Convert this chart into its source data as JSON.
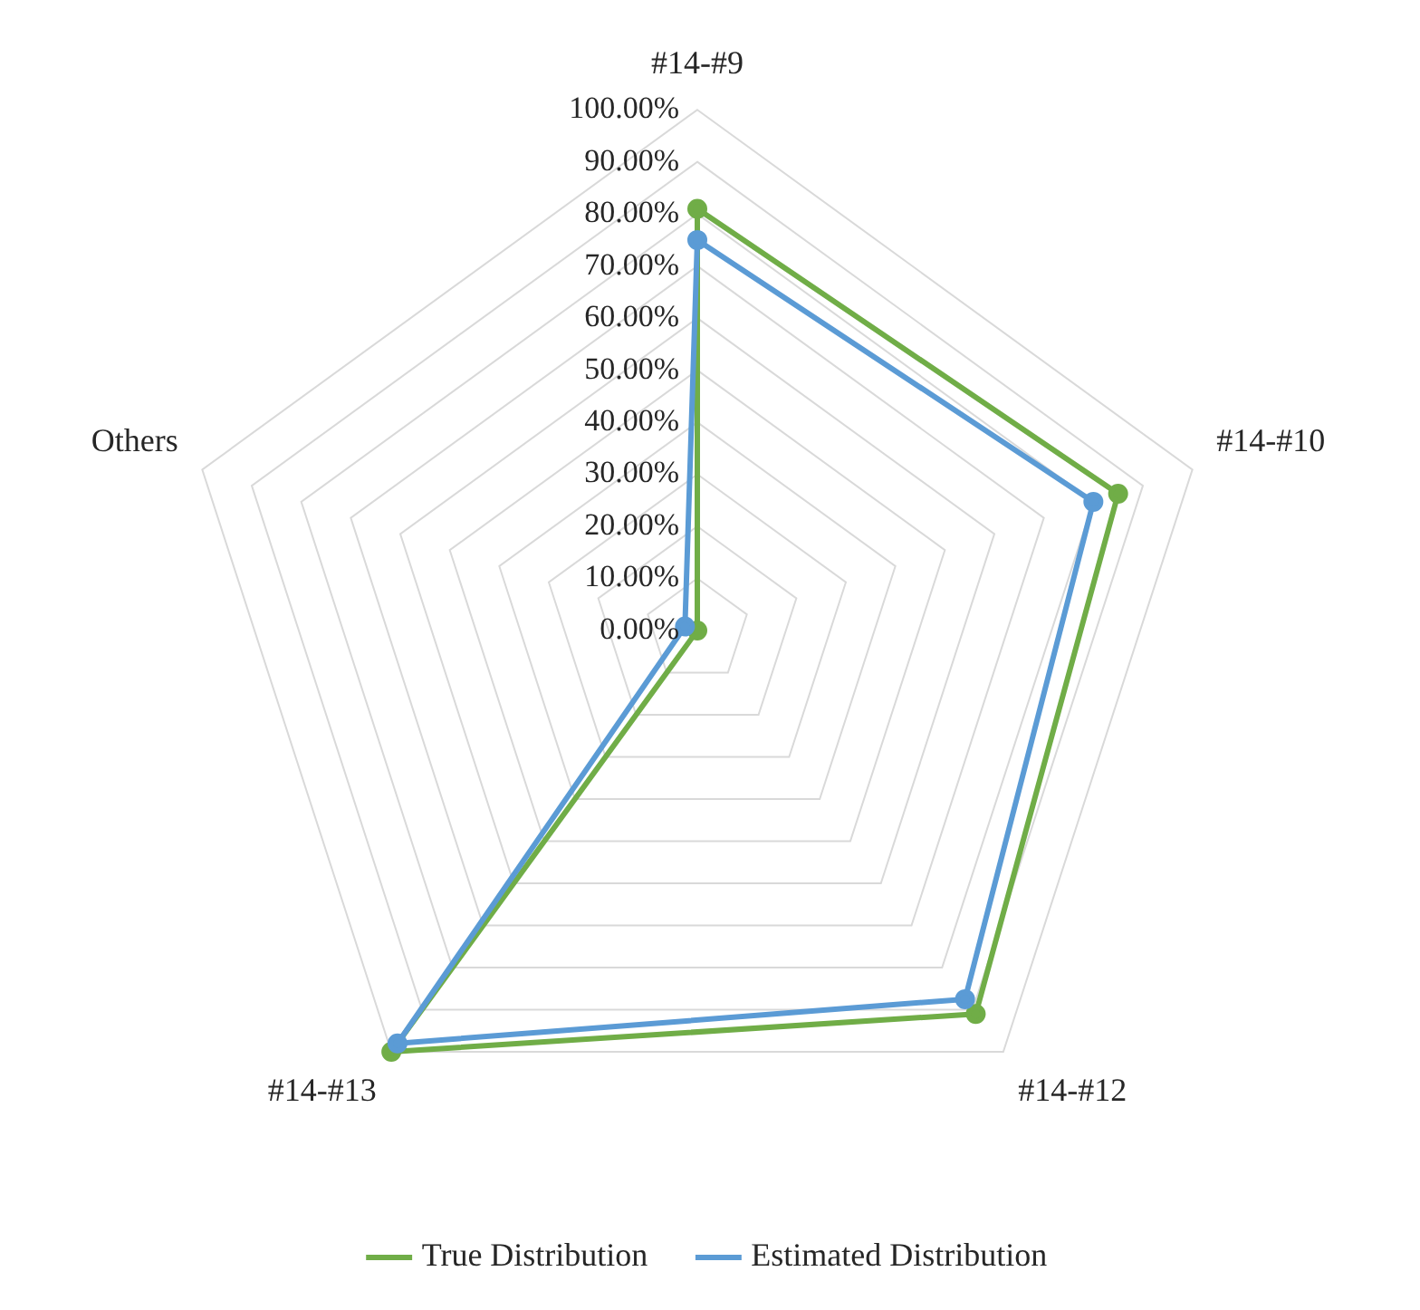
{
  "chart_data": {
    "type": "radar",
    "categories": [
      "#14-#9",
      "#14-#10",
      "#14-#12",
      "#14-#13",
      "Others"
    ],
    "series": [
      {
        "name": "True Distribution",
        "color": "#70ad47",
        "values": [
          81,
          85,
          91,
          100,
          0
        ]
      },
      {
        "name": "Estimated Distribution",
        "color": "#5b9bd5",
        "values": [
          75,
          80,
          87.5,
          98,
          2.5
        ]
      }
    ],
    "ylim": [
      0,
      100
    ],
    "yticks": [
      {
        "value": 0,
        "label": "0.00%"
      },
      {
        "value": 10,
        "label": "10.00%"
      },
      {
        "value": 20,
        "label": "20.00%"
      },
      {
        "value": 30,
        "label": "30.00%"
      },
      {
        "value": 40,
        "label": "40.00%"
      },
      {
        "value": 50,
        "label": "50.00%"
      },
      {
        "value": 60,
        "label": "60.00%"
      },
      {
        "value": 70,
        "label": "70.00%"
      },
      {
        "value": 80,
        "label": "80.00%"
      },
      {
        "value": 90,
        "label": "90.00%"
      },
      {
        "value": 100,
        "label": "100.00%"
      }
    ],
    "grid": true,
    "legend": "bottom",
    "marker": "circle",
    "line_style": "solid"
  }
}
